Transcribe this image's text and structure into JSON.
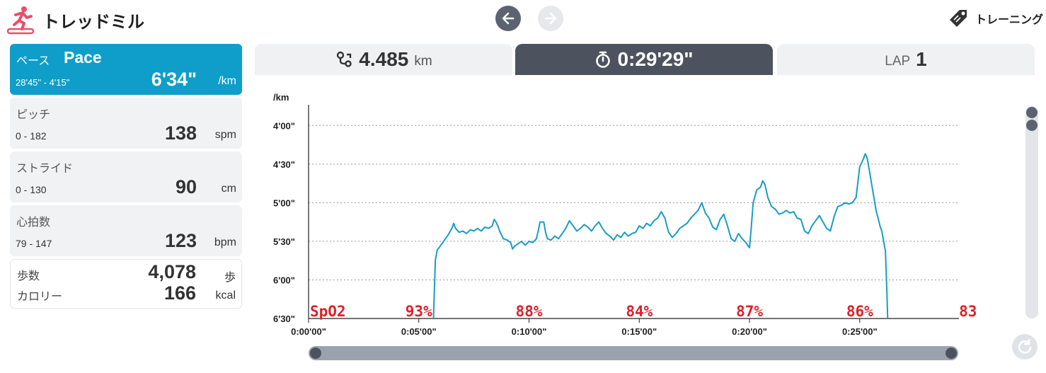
{
  "header": {
    "title": "トレッドミル",
    "training_label": "トレーニング"
  },
  "metrics": [
    {
      "label": "ペース",
      "label_en": "Pace",
      "range": "28'45\" - 4'15\"",
      "value": "6'34\"",
      "unit": "/km",
      "active": true
    },
    {
      "label": "ピッチ",
      "range": "0 - 182",
      "value": "138",
      "unit": "spm"
    },
    {
      "label": "ストライド",
      "range": "0 - 130",
      "value": "90",
      "unit": "cm"
    },
    {
      "label": "心拍数",
      "range": "79 - 147",
      "value": "123",
      "unit": "bpm"
    }
  ],
  "summary": {
    "steps_label": "歩数",
    "steps_value": "4,078",
    "steps_unit": "歩",
    "calories_label": "カロリー",
    "calories_value": "166",
    "calories_unit": "kcal"
  },
  "tabs": {
    "distance": {
      "value": "4.485",
      "unit": "km"
    },
    "time": {
      "value": "0:29'29\""
    },
    "lap": {
      "label": "LAP",
      "value": "1"
    }
  },
  "colors": {
    "accent": "#0e9ec9",
    "tab_active": "#4d535e",
    "spo2": "#e0202a",
    "line": "#1a9cc4"
  },
  "chart_data": {
    "type": "line",
    "ylabel": "/km",
    "y_ticks": [
      "4'00\"",
      "4'30\"",
      "5'00\"",
      "5'30\"",
      "6'00\"",
      "6'30\""
    ],
    "y_tick_values": [
      240,
      270,
      300,
      330,
      360,
      390
    ],
    "ylim": [
      225,
      390
    ],
    "x_ticks": [
      "0:00'00\"",
      "0:05'00\"",
      "0:10'00\"",
      "0:15'00\"",
      "0:20'00\"",
      "0:25'00\""
    ],
    "x_tick_values": [
      0,
      300,
      600,
      900,
      1200,
      1500
    ],
    "xlim": [
      0,
      1770
    ],
    "series": [
      {
        "points": [
          [
            340,
            390
          ],
          [
            345,
            345
          ],
          [
            350,
            337
          ],
          [
            360,
            333
          ],
          [
            370,
            329
          ],
          [
            380,
            325
          ],
          [
            390,
            320
          ],
          [
            395,
            316
          ],
          [
            400,
            320
          ],
          [
            410,
            323
          ],
          [
            420,
            322
          ],
          [
            430,
            324
          ],
          [
            440,
            321
          ],
          [
            450,
            322
          ],
          [
            460,
            320
          ],
          [
            470,
            322
          ],
          [
            480,
            319
          ],
          [
            490,
            320
          ],
          [
            500,
            318
          ],
          [
            505,
            313
          ],
          [
            510,
            315
          ],
          [
            515,
            318
          ],
          [
            520,
            322
          ],
          [
            530,
            328
          ],
          [
            540,
            329
          ],
          [
            550,
            331
          ],
          [
            555,
            336
          ],
          [
            560,
            334
          ],
          [
            570,
            332
          ],
          [
            580,
            330
          ],
          [
            590,
            333
          ],
          [
            600,
            330
          ],
          [
            610,
            331
          ],
          [
            620,
            328
          ],
          [
            625,
            322
          ],
          [
            630,
            315
          ],
          [
            640,
            315
          ],
          [
            645,
            323
          ],
          [
            650,
            328
          ],
          [
            660,
            329
          ],
          [
            670,
            326
          ],
          [
            680,
            328
          ],
          [
            690,
            324
          ],
          [
            700,
            320
          ],
          [
            710,
            314
          ],
          [
            720,
            318
          ],
          [
            730,
            322
          ],
          [
            740,
            320
          ],
          [
            750,
            317
          ],
          [
            760,
            319
          ],
          [
            770,
            322
          ],
          [
            780,
            318
          ],
          [
            790,
            315
          ],
          [
            800,
            320
          ],
          [
            810,
            324
          ],
          [
            820,
            326
          ],
          [
            830,
            329
          ],
          [
            840,
            325
          ],
          [
            850,
            327
          ],
          [
            860,
            323
          ],
          [
            870,
            326
          ],
          [
            880,
            324
          ],
          [
            890,
            323
          ],
          [
            900,
            318
          ],
          [
            910,
            320
          ],
          [
            920,
            316
          ],
          [
            930,
            318
          ],
          [
            940,
            314
          ],
          [
            950,
            312
          ],
          [
            960,
            307
          ],
          [
            970,
            312
          ],
          [
            975,
            318
          ],
          [
            980,
            323
          ],
          [
            990,
            327
          ],
          [
            1000,
            324
          ],
          [
            1010,
            320
          ],
          [
            1020,
            318
          ],
          [
            1030,
            316
          ],
          [
            1040,
            312
          ],
          [
            1050,
            309
          ],
          [
            1060,
            306
          ],
          [
            1070,
            300
          ],
          [
            1080,
            308
          ],
          [
            1090,
            312
          ],
          [
            1100,
            319
          ],
          [
            1110,
            321
          ],
          [
            1120,
            313
          ],
          [
            1130,
            309
          ],
          [
            1140,
            318
          ],
          [
            1150,
            328
          ],
          [
            1160,
            330
          ],
          [
            1170,
            324
          ],
          [
            1180,
            328
          ],
          [
            1190,
            331
          ],
          [
            1200,
            335
          ],
          [
            1205,
            319
          ],
          [
            1210,
            300
          ],
          [
            1220,
            290
          ],
          [
            1230,
            288
          ],
          [
            1236,
            283
          ],
          [
            1242,
            286
          ],
          [
            1250,
            296
          ],
          [
            1260,
            303
          ],
          [
            1270,
            305
          ],
          [
            1280,
            309
          ],
          [
            1290,
            308
          ],
          [
            1300,
            306
          ],
          [
            1310,
            308
          ],
          [
            1320,
            307
          ],
          [
            1330,
            312
          ],
          [
            1340,
            313
          ],
          [
            1350,
            322
          ],
          [
            1360,
            324
          ],
          [
            1370,
            318
          ],
          [
            1380,
            314
          ],
          [
            1390,
            310
          ],
          [
            1400,
            315
          ],
          [
            1410,
            320
          ],
          [
            1420,
            322
          ],
          [
            1430,
            311
          ],
          [
            1440,
            303
          ],
          [
            1450,
            302
          ],
          [
            1460,
            300
          ],
          [
            1470,
            301
          ],
          [
            1480,
            300
          ],
          [
            1490,
            296
          ],
          [
            1500,
            272
          ],
          [
            1510,
            266
          ],
          [
            1515,
            262
          ],
          [
            1520,
            265
          ],
          [
            1525,
            273
          ],
          [
            1535,
            290
          ],
          [
            1545,
            307
          ],
          [
            1550,
            312
          ],
          [
            1555,
            318
          ],
          [
            1560,
            322
          ],
          [
            1565,
            330
          ],
          [
            1570,
            338
          ],
          [
            1574,
            370
          ],
          [
            1576,
            390
          ]
        ]
      }
    ],
    "annotations": [
      {
        "text": "SpO2",
        "x": 0
      },
      {
        "text": "93%",
        "x": 300
      },
      {
        "text": "88%",
        "x": 600
      },
      {
        "text": "84%",
        "x": 900
      },
      {
        "text": "87%",
        "x": 1200
      },
      {
        "text": "86%",
        "x": 1500
      },
      {
        "text": "83%",
        "x": 1770
      }
    ],
    "grid": true
  }
}
